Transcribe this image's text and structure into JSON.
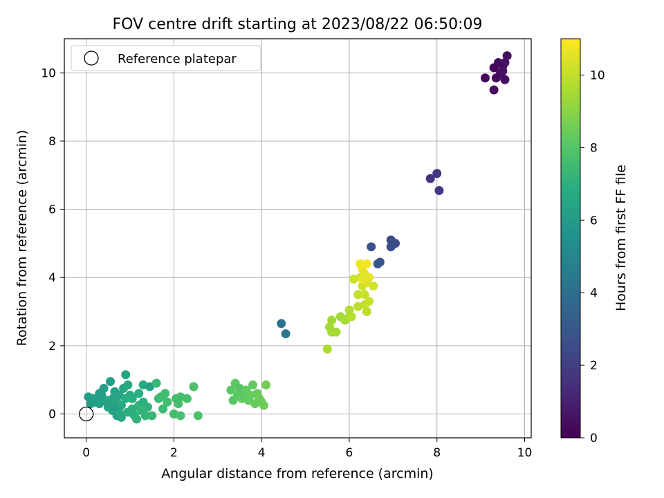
{
  "chart_data": {
    "type": "scatter",
    "title": "FOV centre drift starting at 2023/08/22 06:50:09",
    "xlabel": "Angular distance from reference (arcmin)",
    "ylabel": "Rotation from reference (arcmin)",
    "xlim": [
      -0.5,
      10.15
    ],
    "ylim": [
      -0.7,
      11.0
    ],
    "xticks": [
      "0",
      "2",
      "4",
      "6",
      "8",
      "10"
    ],
    "yticks": [
      "0",
      "2",
      "4",
      "6",
      "8",
      "10"
    ],
    "grid": true,
    "legend": {
      "placement": "top-left",
      "entries": [
        "Reference platepar"
      ]
    },
    "reference_point": {
      "x": 0,
      "y": 0,
      "label": "Reference platepar"
    },
    "colorbar": {
      "label": "Hours from first FF file",
      "range": [
        0,
        11
      ],
      "ticks": [
        "0",
        "2",
        "4",
        "6",
        "8",
        "10"
      ],
      "colormap": "viridis"
    },
    "points": [
      {
        "x": 9.1,
        "y": 9.85,
        "c": 0.2
      },
      {
        "x": 9.3,
        "y": 10.15,
        "c": 0.2
      },
      {
        "x": 9.4,
        "y": 10.3,
        "c": 0.3
      },
      {
        "x": 9.5,
        "y": 10.2,
        "c": 0.3
      },
      {
        "x": 9.6,
        "y": 10.5,
        "c": 0.4
      },
      {
        "x": 9.45,
        "y": 10.0,
        "c": 0.3
      },
      {
        "x": 9.55,
        "y": 9.8,
        "c": 0.4
      },
      {
        "x": 9.35,
        "y": 9.85,
        "c": 0.3
      },
      {
        "x": 9.3,
        "y": 9.5,
        "c": 0.4
      },
      {
        "x": 9.55,
        "y": 10.3,
        "c": 0.5
      },
      {
        "x": 9.5,
        "y": 10.05,
        "c": 0.5
      },
      {
        "x": 7.85,
        "y": 6.9,
        "c": 1.6
      },
      {
        "x": 8.0,
        "y": 7.05,
        "c": 1.7
      },
      {
        "x": 8.05,
        "y": 6.55,
        "c": 1.8
      },
      {
        "x": 6.95,
        "y": 5.1,
        "c": 2.5
      },
      {
        "x": 7.05,
        "y": 5.0,
        "c": 2.5
      },
      {
        "x": 6.95,
        "y": 4.9,
        "c": 2.6
      },
      {
        "x": 6.5,
        "y": 4.9,
        "c": 2.7
      },
      {
        "x": 6.7,
        "y": 4.45,
        "c": 2.9
      },
      {
        "x": 6.65,
        "y": 4.4,
        "c": 3.0
      },
      {
        "x": 4.45,
        "y": 2.65,
        "c": 4.2
      },
      {
        "x": 4.55,
        "y": 2.35,
        "c": 4.3
      },
      {
        "x": 0.05,
        "y": 0.5,
        "c": 6.0
      },
      {
        "x": 0.1,
        "y": 0.3,
        "c": 6.1
      },
      {
        "x": 0.15,
        "y": 0.45,
        "c": 6.1
      },
      {
        "x": 0.2,
        "y": 0.35,
        "c": 6.2
      },
      {
        "x": 0.25,
        "y": 0.45,
        "c": 6.2
      },
      {
        "x": 0.3,
        "y": 0.3,
        "c": 6.3
      },
      {
        "x": 0.35,
        "y": 0.55,
        "c": 6.2
      },
      {
        "x": 0.4,
        "y": 0.75,
        "c": 6.0
      },
      {
        "x": 0.45,
        "y": 0.4,
        "c": 6.4
      },
      {
        "x": 0.5,
        "y": 0.3,
        "c": 6.3
      },
      {
        "x": 0.55,
        "y": 0.95,
        "c": 6.1
      },
      {
        "x": 0.6,
        "y": 0.45,
        "c": 6.5
      },
      {
        "x": 0.6,
        "y": 0.1,
        "c": 6.4
      },
      {
        "x": 0.65,
        "y": 0.65,
        "c": 6.3
      },
      {
        "x": 0.7,
        "y": 0.35,
        "c": 6.6
      },
      {
        "x": 0.7,
        "y": -0.05,
        "c": 6.5
      },
      {
        "x": 0.75,
        "y": 0.55,
        "c": 6.4
      },
      {
        "x": 0.8,
        "y": 0.25,
        "c": 6.7
      },
      {
        "x": 0.8,
        "y": -0.1,
        "c": 6.6
      },
      {
        "x": 0.85,
        "y": 0.75,
        "c": 6.5
      },
      {
        "x": 0.9,
        "y": 1.15,
        "c": 6.4
      },
      {
        "x": 0.9,
        "y": 0.45,
        "c": 6.8
      },
      {
        "x": 0.95,
        "y": 0.85,
        "c": 6.7
      },
      {
        "x": 0.95,
        "y": 0.05,
        "c": 6.9
      },
      {
        "x": 1.0,
        "y": 0.55,
        "c": 6.8
      },
      {
        "x": 1.05,
        "y": 0.15,
        "c": 7.0
      },
      {
        "x": 1.1,
        "y": -0.05,
        "c": 7.0
      },
      {
        "x": 1.15,
        "y": -0.15,
        "c": 7.1
      },
      {
        "x": 1.2,
        "y": 0.6,
        "c": 6.9
      },
      {
        "x": 1.2,
        "y": 0.25,
        "c": 7.1
      },
      {
        "x": 1.25,
        "y": 0.1,
        "c": 7.2
      },
      {
        "x": 1.3,
        "y": 0.85,
        "c": 6.7
      },
      {
        "x": 1.3,
        "y": 0.35,
        "c": 7.0
      },
      {
        "x": 1.35,
        "y": -0.05,
        "c": 7.2
      },
      {
        "x": 1.4,
        "y": 0.2,
        "c": 7.1
      },
      {
        "x": 1.45,
        "y": 0.8,
        "c": 6.3
      },
      {
        "x": 1.5,
        "y": -0.05,
        "c": 7.3
      },
      {
        "x": 1.6,
        "y": 0.9,
        "c": 7.3
      },
      {
        "x": 1.65,
        "y": 0.45,
        "c": 7.4
      },
      {
        "x": 1.7,
        "y": 0.5,
        "c": 7.5
      },
      {
        "x": 1.75,
        "y": 0.15,
        "c": 7.4
      },
      {
        "x": 1.8,
        "y": 0.6,
        "c": 7.5
      },
      {
        "x": 1.85,
        "y": 0.35,
        "c": 7.6
      },
      {
        "x": 2.0,
        "y": 0.0,
        "c": 7.6
      },
      {
        "x": 2.05,
        "y": 0.45,
        "c": 7.6
      },
      {
        "x": 2.1,
        "y": 0.3,
        "c": 7.7
      },
      {
        "x": 2.15,
        "y": 0.5,
        "c": 7.6
      },
      {
        "x": 2.15,
        "y": -0.05,
        "c": 7.7
      },
      {
        "x": 2.3,
        "y": 0.45,
        "c": 7.7
      },
      {
        "x": 2.45,
        "y": 0.8,
        "c": 7.8
      },
      {
        "x": 2.55,
        "y": -0.05,
        "c": 7.8
      },
      {
        "x": 0.3,
        "y": 0.6,
        "c": 6.1
      },
      {
        "x": 0.5,
        "y": 0.2,
        "c": 6.4
      },
      {
        "x": 0.75,
        "y": 0.05,
        "c": 6.7
      },
      {
        "x": 1.05,
        "y": 0.45,
        "c": 6.9
      },
      {
        "x": 0.65,
        "y": 0.2,
        "c": 6.2
      },
      {
        "x": 3.3,
        "y": 0.7,
        "c": 8.1
      },
      {
        "x": 3.35,
        "y": 0.4,
        "c": 8.1
      },
      {
        "x": 3.4,
        "y": 0.9,
        "c": 8.2
      },
      {
        "x": 3.45,
        "y": 0.55,
        "c": 8.2
      },
      {
        "x": 3.5,
        "y": 0.75,
        "c": 8.1
      },
      {
        "x": 3.55,
        "y": 0.45,
        "c": 8.3
      },
      {
        "x": 3.6,
        "y": 0.6,
        "c": 8.2
      },
      {
        "x": 3.65,
        "y": 0.7,
        "c": 8.3
      },
      {
        "x": 3.7,
        "y": 0.4,
        "c": 8.3
      },
      {
        "x": 3.75,
        "y": 0.55,
        "c": 8.4
      },
      {
        "x": 3.8,
        "y": 0.85,
        "c": 8.3
      },
      {
        "x": 3.85,
        "y": 0.3,
        "c": 8.4
      },
      {
        "x": 3.9,
        "y": 0.6,
        "c": 8.4
      },
      {
        "x": 3.95,
        "y": 0.45,
        "c": 8.5
      },
      {
        "x": 4.0,
        "y": 0.35,
        "c": 8.5
      },
      {
        "x": 4.05,
        "y": 0.25,
        "c": 8.5
      },
      {
        "x": 4.1,
        "y": 0.85,
        "c": 8.6
      },
      {
        "x": 5.5,
        "y": 1.9,
        "c": 9.6
      },
      {
        "x": 5.55,
        "y": 2.55,
        "c": 9.5
      },
      {
        "x": 5.6,
        "y": 2.75,
        "c": 9.4
      },
      {
        "x": 5.6,
        "y": 2.4,
        "c": 9.5
      },
      {
        "x": 5.7,
        "y": 2.4,
        "c": 9.5
      },
      {
        "x": 5.8,
        "y": 2.85,
        "c": 9.4
      },
      {
        "x": 5.9,
        "y": 2.75,
        "c": 9.5
      },
      {
        "x": 6.0,
        "y": 2.85,
        "c": 9.6
      },
      {
        "x": 6.0,
        "y": 3.05,
        "c": 9.7
      },
      {
        "x": 6.05,
        "y": 2.85,
        "c": 9.8
      },
      {
        "x": 6.1,
        "y": 3.95,
        "c": 10.2
      },
      {
        "x": 6.2,
        "y": 3.5,
        "c": 10.0
      },
      {
        "x": 6.2,
        "y": 3.15,
        "c": 9.9
      },
      {
        "x": 6.25,
        "y": 4.0,
        "c": 10.3
      },
      {
        "x": 6.25,
        "y": 4.4,
        "c": 10.8
      },
      {
        "x": 6.3,
        "y": 4.25,
        "c": 10.7
      },
      {
        "x": 6.3,
        "y": 3.75,
        "c": 10.2
      },
      {
        "x": 6.35,
        "y": 4.1,
        "c": 10.5
      },
      {
        "x": 6.35,
        "y": 3.5,
        "c": 10.1
      },
      {
        "x": 6.35,
        "y": 3.2,
        "c": 10.0
      },
      {
        "x": 6.4,
        "y": 4.4,
        "c": 10.9
      },
      {
        "x": 6.4,
        "y": 3.85,
        "c": 10.4
      },
      {
        "x": 6.4,
        "y": 3.0,
        "c": 9.9
      },
      {
        "x": 6.45,
        "y": 3.3,
        "c": 10.1
      },
      {
        "x": 6.45,
        "y": 4.0,
        "c": 10.6
      },
      {
        "x": 6.55,
        "y": 3.75,
        "c": 10.3
      },
      {
        "x": 6.3,
        "y": 3.95,
        "c": 10.6
      }
    ]
  }
}
